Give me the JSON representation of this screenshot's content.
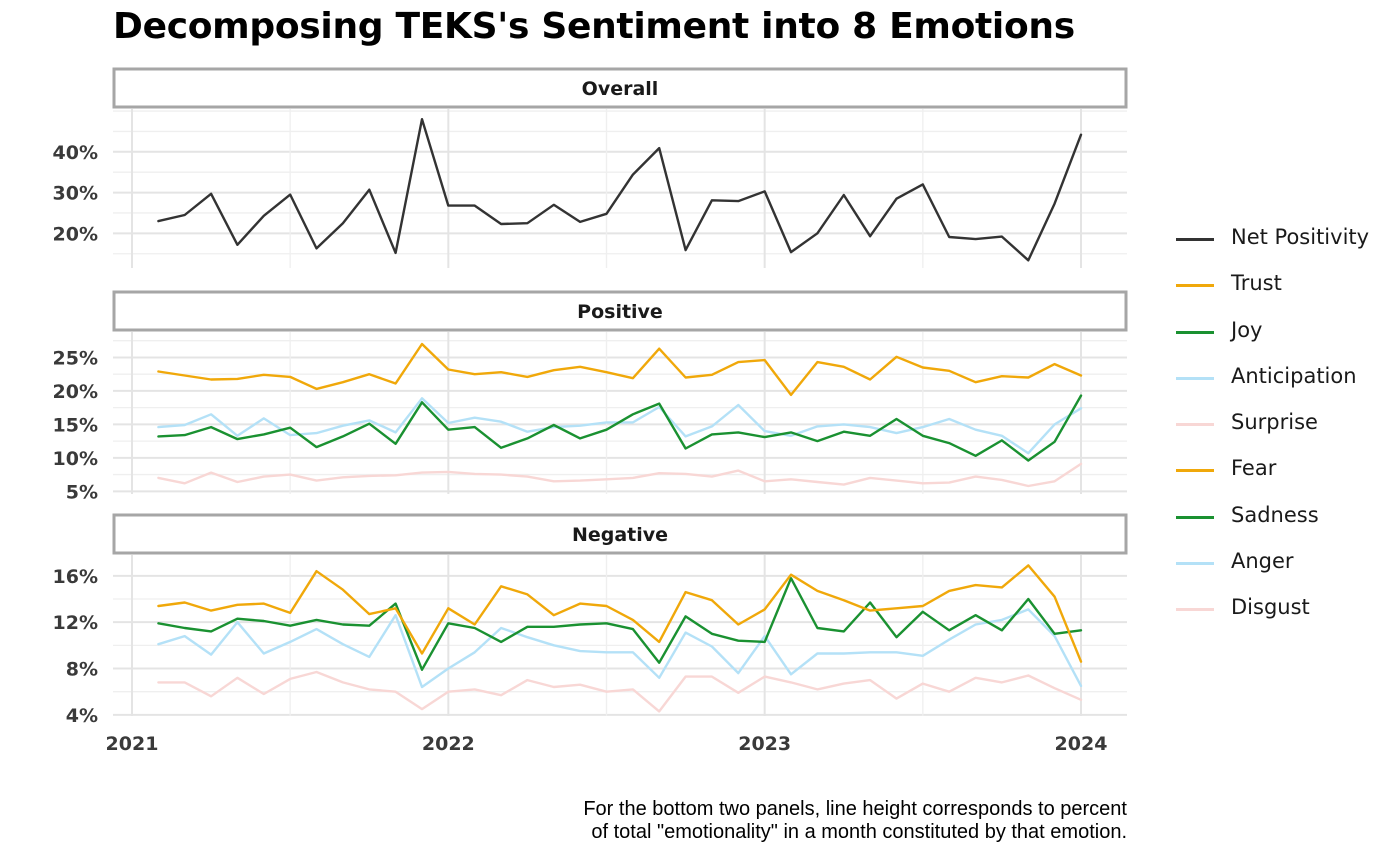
{
  "title": "Decomposing TEKS's Sentiment into 8 Emotions",
  "caption": {
    "line1": "For the bottom two panels, line height corresponds to percent",
    "line2": "of total \"emotionality\" in a month constituted by that emotion."
  },
  "legend": [
    {
      "name": "Net Positivity",
      "color": "#333333"
    },
    {
      "name": "Trust",
      "color": "#F0A80A"
    },
    {
      "name": "Joy",
      "color": "#1A9131"
    },
    {
      "name": "Anticipation",
      "color": "#B4E1F7"
    },
    {
      "name": "Surprise",
      "color": "#F8D7D5"
    },
    {
      "name": "Fear",
      "color": "#F0A80A"
    },
    {
      "name": "Sadness",
      "color": "#1A9131"
    },
    {
      "name": "Anger",
      "color": "#B4E1F7"
    },
    {
      "name": "Disgust",
      "color": "#F8D7D5"
    }
  ],
  "chart_data": {
    "type": "line",
    "x_ticks": [
      "2021",
      "2022",
      "2023",
      "2024"
    ],
    "x": [
      "2021-02",
      "2021-03",
      "2021-04",
      "2021-05",
      "2021-06",
      "2021-07",
      "2021-08",
      "2021-09",
      "2021-10",
      "2021-11",
      "2021-12",
      "2022-01",
      "2022-02",
      "2022-03",
      "2022-04",
      "2022-05",
      "2022-06",
      "2022-07",
      "2022-08",
      "2022-09",
      "2022-10",
      "2022-11",
      "2022-12",
      "2023-01",
      "2023-02",
      "2023-03",
      "2023-04",
      "2023-05",
      "2023-06",
      "2023-07",
      "2023-08",
      "2023-09",
      "2023-10",
      "2023-11",
      "2023-12",
      "2024-01"
    ],
    "grid": true,
    "legend_position": "right",
    "panels": [
      {
        "strip": "Overall",
        "y_ticks": [
          "20%",
          "30%",
          "40%"
        ],
        "y_tick_values": [
          20,
          30,
          40
        ],
        "ylim": [
          11.5,
          50.5
        ],
        "series": [
          {
            "name": "Net Positivity",
            "color": "#333333",
            "values": [
              23,
              24.5,
              29.7,
              17.2,
              24.3,
              29.5,
              16.3,
              22.5,
              30.7,
              15.2,
              48,
              26.8,
              26.8,
              22.3,
              22.5,
              27,
              22.8,
              24.8,
              34.4,
              40.9,
              15.9,
              28.1,
              27.9,
              30.3,
              15.4,
              20,
              29.4,
              19.3,
              28.5,
              32,
              19.1,
              18.6,
              19.2,
              13.4,
              27.3,
              44.2
            ]
          }
        ]
      },
      {
        "strip": "Positive",
        "y_ticks": [
          "5%",
          "10%",
          "15%",
          "20%",
          "25%"
        ],
        "y_tick_values": [
          5,
          10,
          15,
          20,
          25
        ],
        "ylim": [
          4.6,
          28.8
        ],
        "series": [
          {
            "name": "Trust",
            "color": "#F0A80A",
            "values": [
              22.9,
              22.3,
              21.7,
              21.8,
              22.4,
              22.1,
              20.3,
              21.3,
              22.5,
              21.1,
              27,
              23.2,
              22.5,
              22.8,
              22.1,
              23.1,
              23.6,
              22.8,
              21.9,
              26.3,
              22,
              22.4,
              24.3,
              24.6,
              19.4,
              24.3,
              23.6,
              21.7,
              25.1,
              23.5,
              23,
              21.3,
              22.2,
              22,
              24,
              22.3
            ]
          },
          {
            "name": "Joy",
            "color": "#1A9131",
            "values": [
              13.2,
              13.4,
              14.6,
              12.8,
              13.5,
              14.5,
              11.6,
              13.2,
              15.1,
              12.1,
              18.3,
              14.2,
              14.6,
              11.5,
              12.9,
              14.9,
              12.9,
              14.2,
              16.5,
              18.1,
              11.4,
              13.5,
              13.8,
              13.1,
              13.8,
              12.5,
              13.9,
              13.3,
              15.8,
              13.3,
              12.2,
              10.3,
              12.6,
              9.6,
              12.4,
              19.3
            ]
          },
          {
            "name": "Anticipation",
            "color": "#B4E1F7",
            "values": [
              14.6,
              14.9,
              16.5,
              13.3,
              15.9,
              13.4,
              13.7,
              14.8,
              15.6,
              13.8,
              18.9,
              15.2,
              16,
              15.4,
              13.9,
              14.6,
              14.8,
              15.3,
              15.3,
              17.6,
              13.2,
              14.7,
              17.9,
              14,
              13.3,
              14.7,
              15,
              14.6,
              13.7,
              14.6,
              15.8,
              14.2,
              13.3,
              10.7,
              15,
              17.4
            ]
          },
          {
            "name": "Surprise",
            "color": "#F8D7D5",
            "values": [
              7,
              6.2,
              7.8,
              6.4,
              7.2,
              7.5,
              6.6,
              7.1,
              7.3,
              7.4,
              7.8,
              7.9,
              7.6,
              7.5,
              7.2,
              6.5,
              6.6,
              6.8,
              7,
              7.7,
              7.6,
              7.2,
              8.1,
              6.5,
              6.8,
              6.4,
              6,
              7,
              6.6,
              6.2,
              6.3,
              7.2,
              6.7,
              5.8,
              6.5,
              9.1
            ]
          }
        ]
      },
      {
        "strip": "Negative",
        "y_ticks": [
          "4%",
          "8%",
          "12%",
          "16%"
        ],
        "y_tick_values": [
          4,
          8,
          12,
          16
        ],
        "ylim": [
          3.9,
          17.8
        ],
        "series": [
          {
            "name": "Fear",
            "color": "#F0A80A",
            "values": [
              13.4,
              13.7,
              13,
              13.5,
              13.6,
              12.8,
              16.4,
              14.8,
              12.7,
              13.2,
              9.3,
              13.2,
              11.8,
              15.1,
              14.4,
              12.6,
              13.6,
              13.4,
              12.2,
              10.3,
              14.6,
              13.9,
              11.8,
              13.1,
              16.1,
              14.7,
              13.9,
              13,
              13.2,
              13.4,
              14.7,
              15.2,
              15,
              16.9,
              14.2,
              8.6
            ]
          },
          {
            "name": "Sadness",
            "color": "#1A9131",
            "values": [
              11.9,
              11.5,
              11.2,
              12.3,
              12.1,
              11.7,
              12.2,
              11.8,
              11.7,
              13.6,
              7.9,
              11.9,
              11.5,
              10.3,
              11.6,
              11.6,
              11.8,
              11.9,
              11.4,
              8.5,
              12.5,
              11,
              10.4,
              10.3,
              15.8,
              11.5,
              11.2,
              13.7,
              10.7,
              12.9,
              11.3,
              12.6,
              11.3,
              14,
              11,
              11.3
            ]
          },
          {
            "name": "Anger",
            "color": "#B4E1F7",
            "values": [
              10.1,
              10.8,
              9.2,
              12,
              9.3,
              10.3,
              11.4,
              10.1,
              9,
              12.6,
              6.4,
              8,
              9.4,
              11.5,
              10.7,
              10,
              9.5,
              9.4,
              9.4,
              7.2,
              11.1,
              9.9,
              7.6,
              10.8,
              7.5,
              9.3,
              9.3,
              9.4,
              9.4,
              9.1,
              10.5,
              11.8,
              12.2,
              13.1,
              10.8,
              6.5
            ]
          },
          {
            "name": "Disgust",
            "color": "#F8D7D5",
            "values": [
              6.8,
              6.8,
              5.6,
              7.2,
              5.8,
              7.1,
              7.7,
              6.8,
              6.2,
              6,
              4.5,
              6,
              6.2,
              5.7,
              7,
              6.4,
              6.6,
              6,
              6.2,
              4.3,
              7.3,
              7.3,
              5.9,
              7.3,
              6.8,
              6.2,
              6.7,
              7,
              5.4,
              6.7,
              6,
              7.2,
              6.8,
              7.4,
              6.3,
              5.3
            ]
          }
        ]
      }
    ]
  }
}
